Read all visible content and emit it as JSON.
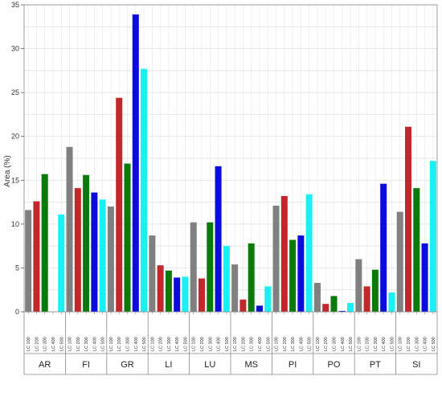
{
  "chart_data": {
    "type": "bar",
    "ylabel": "Area (%)",
    "ylim": [
      0,
      35
    ],
    "yticks": [
      0,
      5,
      10,
      15,
      20,
      25,
      30,
      35
    ],
    "grid": true,
    "categories": [
      "AR",
      "FI",
      "GR",
      "LI",
      "LU",
      "MS",
      "PI",
      "PO",
      "PT",
      "SI"
    ],
    "subcategories": [
      "LC 100",
      "LC 200",
      "LC 300",
      "LC 400",
      "LC 500"
    ],
    "series": [
      {
        "name": "LC 100",
        "color": "#808080",
        "values": [
          11.6,
          18.8,
          12.0,
          8.7,
          10.2,
          5.4,
          12.1,
          3.3,
          6.0,
          11.4
        ]
      },
      {
        "name": "LC 200",
        "color": "#c0282b",
        "values": [
          12.6,
          14.1,
          24.4,
          5.3,
          3.8,
          1.4,
          13.2,
          0.9,
          2.9,
          21.1
        ]
      },
      {
        "name": "LC 300",
        "color": "#0a7a0a",
        "values": [
          15.7,
          15.6,
          16.9,
          4.7,
          10.2,
          7.8,
          8.2,
          1.8,
          4.8,
          14.1
        ]
      },
      {
        "name": "LC 400",
        "color": "#0b0bdc",
        "values": [
          0,
          13.6,
          33.9,
          3.9,
          16.6,
          0.7,
          8.7,
          0.1,
          14.6,
          7.8
        ]
      },
      {
        "name": "LC 500",
        "color": "#19f0f4",
        "values": [
          11.1,
          12.8,
          27.7,
          4.0,
          7.5,
          2.9,
          13.4,
          1.0,
          2.2,
          17.2
        ]
      }
    ]
  }
}
